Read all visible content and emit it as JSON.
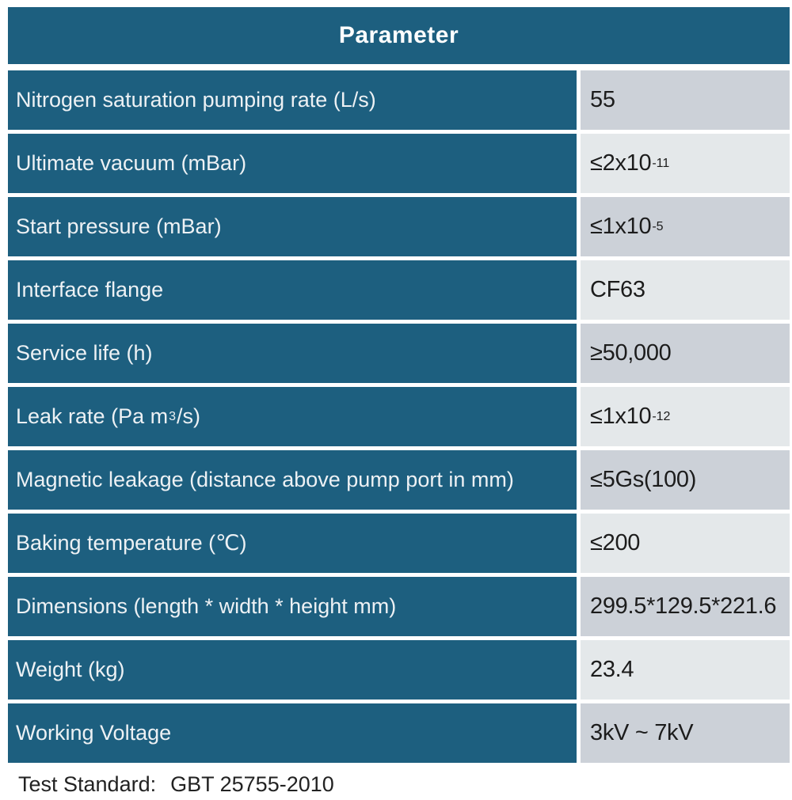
{
  "header": {
    "title": "Parameter"
  },
  "table": {
    "rows": [
      {
        "label_pre": "Nitrogen saturation pumping rate (L/s)",
        "label_sup": "",
        "label_post": "",
        "value_base": "55",
        "value_sup": ""
      },
      {
        "label_pre": "Ultimate vacuum (mBar)",
        "label_sup": "",
        "label_post": "",
        "value_base": "≤2x10",
        "value_sup": "-11"
      },
      {
        "label_pre": "Start pressure (mBar)",
        "label_sup": "",
        "label_post": "",
        "value_base": "≤1x10",
        "value_sup": "-5"
      },
      {
        "label_pre": "Interface flange",
        "label_sup": "",
        "label_post": "",
        "value_base": "CF63",
        "value_sup": ""
      },
      {
        "label_pre": "Service life (h)",
        "label_sup": "",
        "label_post": "",
        "value_base": "≥50,000",
        "value_sup": ""
      },
      {
        "label_pre": "Leak rate (Pa m",
        "label_sup": "3",
        "label_post": "/s)",
        "value_base": "≤1x10",
        "value_sup": "-12"
      },
      {
        "label_pre": "Magnetic leakage (distance above pump port in mm)",
        "label_sup": "",
        "label_post": "",
        "value_base": "≤5Gs(100)",
        "value_sup": ""
      },
      {
        "label_pre": "Baking temperature (℃)",
        "label_sup": "",
        "label_post": "",
        "value_base": "≤200",
        "value_sup": ""
      },
      {
        "label_pre": "Dimensions (length * width * height mm)",
        "label_sup": "",
        "label_post": "",
        "value_base": "299.5*129.5*221.6",
        "value_sup": ""
      },
      {
        "label_pre": "Weight (kg)",
        "label_sup": "",
        "label_post": "",
        "value_base": "23.4",
        "value_sup": ""
      },
      {
        "label_pre": "Working Voltage",
        "label_sup": "",
        "label_post": "",
        "value_base": "3kV ~ 7kV",
        "value_sup": ""
      }
    ]
  },
  "footer": {
    "label": "Test Standard:",
    "value": "GBT 25755-2010"
  },
  "colors": {
    "teal": "#1d5f7f",
    "value_cell_dark": "#ccd1d8",
    "value_cell_light": "#e4e8ea",
    "label_text": "#edf1f4",
    "value_text": "#1c1c1c"
  }
}
